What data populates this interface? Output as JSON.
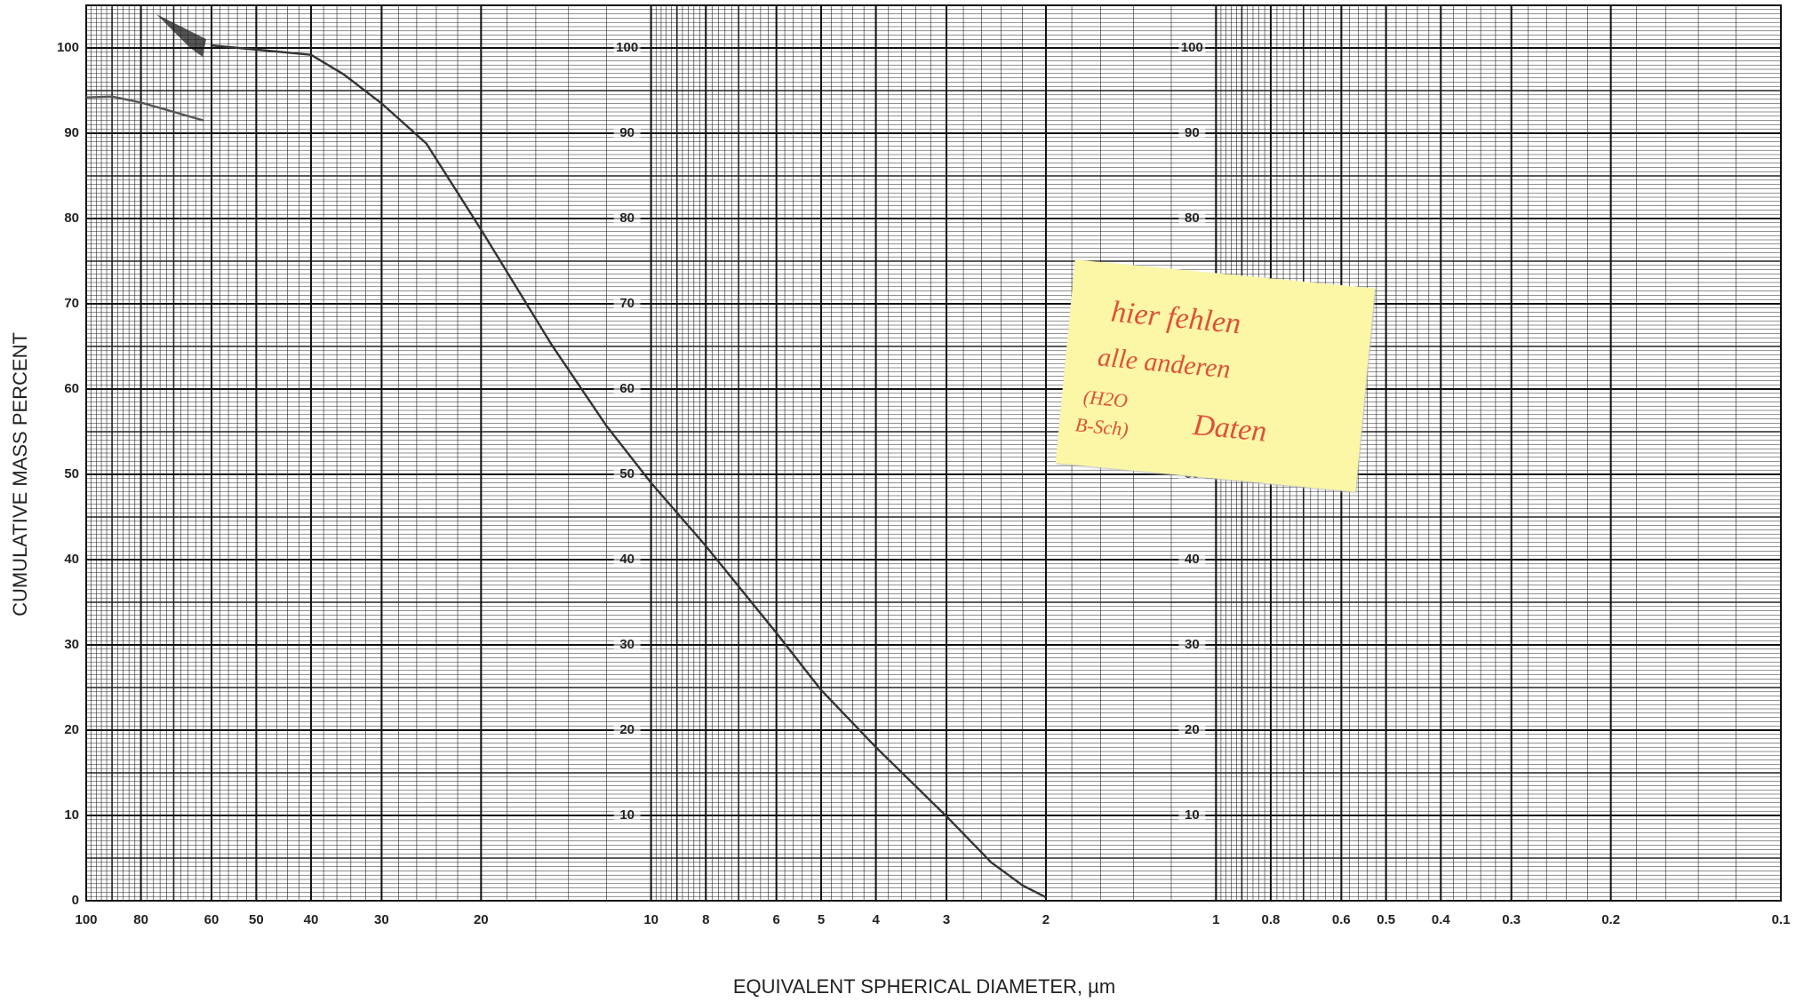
{
  "chart_data": {
    "type": "line",
    "xlabel": "EQUIVALENT SPHERICAL DIAMETER, µm",
    "ylabel": "CUMULATIVE MASS PERCENT",
    "xscale": "log",
    "xlim": [
      100,
      0.1
    ],
    "xticks": [
      100,
      80,
      60,
      50,
      40,
      30,
      20,
      10,
      8,
      6,
      5,
      4,
      3,
      2,
      1,
      0.8,
      0.6,
      0.5,
      0.4,
      0.3,
      0.2,
      0.1
    ],
    "ylim": [
      0,
      105
    ],
    "yticks": [
      0,
      10,
      20,
      30,
      40,
      50,
      60,
      70,
      80,
      90,
      100
    ],
    "grid": true,
    "series": [
      {
        "color": "#333333",
        "x": [
          60,
          40,
          35,
          30,
          25,
          20,
          15,
          12,
          10,
          8,
          6,
          5,
          4,
          3,
          2.5,
          2.2,
          2
        ],
        "values": [
          100.3,
          99.2,
          96.9,
          93.5,
          88.8,
          78.7,
          65.2,
          55.7,
          49,
          41.6,
          31.4,
          24.7,
          18,
          9.9,
          4.5,
          1.8,
          0.4
        ]
      },
      {
        "color": "#555555",
        "x": [
          100,
          90,
          80,
          70,
          62
        ],
        "values": [
          94.2,
          94.3,
          93.6,
          92.5,
          91.5
        ]
      }
    ],
    "annotations": [
      "hier fehlen",
      "alle anderen",
      "(H2O",
      "B-Sch)",
      "Daten"
    ]
  }
}
